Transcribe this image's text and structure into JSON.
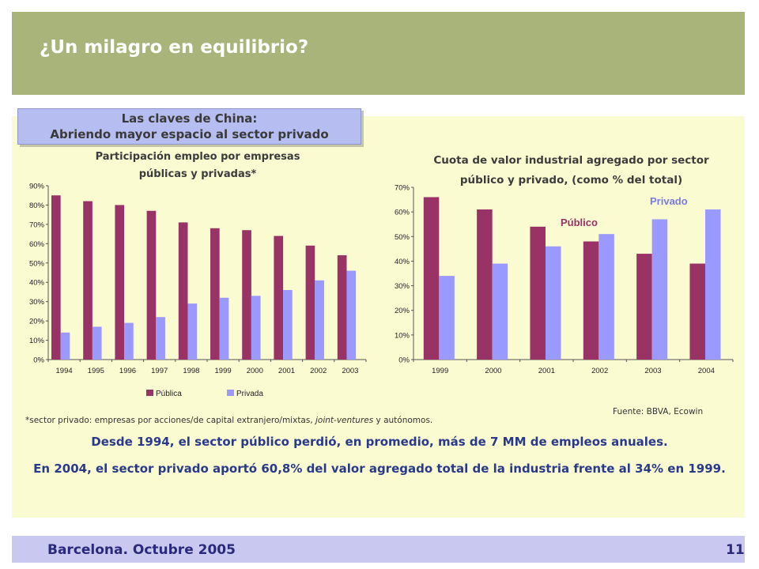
{
  "slide": {
    "title": "¿Un milagro en equilibrio?",
    "callout_line1": "Las claves de China:",
    "callout_line2": "Abriendo mayor espacio al sector privado",
    "footnote_pre": "*sector privado: empresas por acciones/de capital extranjero/mixtas, ",
    "footnote_italic": "joint-ventures",
    "footnote_post": " y autónomos.",
    "source": "Fuente: BBVA, Ecowin",
    "conclusion1": "Desde 1994,  el sector público perdió, en promedio, más de 7 MM de empleos anuales.",
    "conclusion2": "En 2004, el sector privado aportó 60,8% del valor agregado total de la industria frente al 34% en 1999.",
    "footer": "Barcelona. Octubre 2005",
    "page": "11"
  },
  "colors": {
    "publica": "#993366",
    "privada": "#9999ff",
    "header": "#a8b47a",
    "panel": "#fbfbd2",
    "text_blue": "#2a3a8a"
  },
  "chart_data": [
    {
      "type": "bar",
      "title_line1": "Participación empleo por empresas",
      "title_line2": "públicas y privadas*",
      "categories": [
        "1994",
        "1995",
        "1996",
        "1997",
        "1998",
        "1999",
        "2000",
        "2001",
        "2002",
        "2003"
      ],
      "series": [
        {
          "name": "Pública",
          "values": [
            85,
            82,
            80,
            77,
            71,
            68,
            67,
            64,
            59,
            54
          ]
        },
        {
          "name": "Privada",
          "values": [
            14,
            17,
            19,
            22,
            29,
            32,
            33,
            36,
            41,
            46
          ]
        }
      ],
      "ylim": [
        0,
        90
      ],
      "yticks": [
        "0%",
        "10%",
        "20%",
        "30%",
        "40%",
        "50%",
        "60%",
        "70%",
        "80%",
        "90%"
      ],
      "legend": "bottom"
    },
    {
      "type": "bar",
      "title_line1": "Cuota de valor industrial agregado por sector",
      "title_line2": "público y privado, (como % del total)",
      "categories": [
        "1999",
        "2000",
        "2001",
        "2002",
        "2003",
        "2004"
      ],
      "series": [
        {
          "name": "Público",
          "values": [
            66,
            61,
            54,
            48,
            43,
            39
          ]
        },
        {
          "name": "Privado",
          "values": [
            34,
            39,
            46,
            51,
            57,
            61
          ]
        }
      ],
      "ylim": [
        0,
        70
      ],
      "yticks": [
        "0%",
        "10%",
        "20%",
        "30%",
        "40%",
        "50%",
        "60%",
        "70%"
      ],
      "annotations": [
        "Público",
        "Privado"
      ]
    }
  ]
}
